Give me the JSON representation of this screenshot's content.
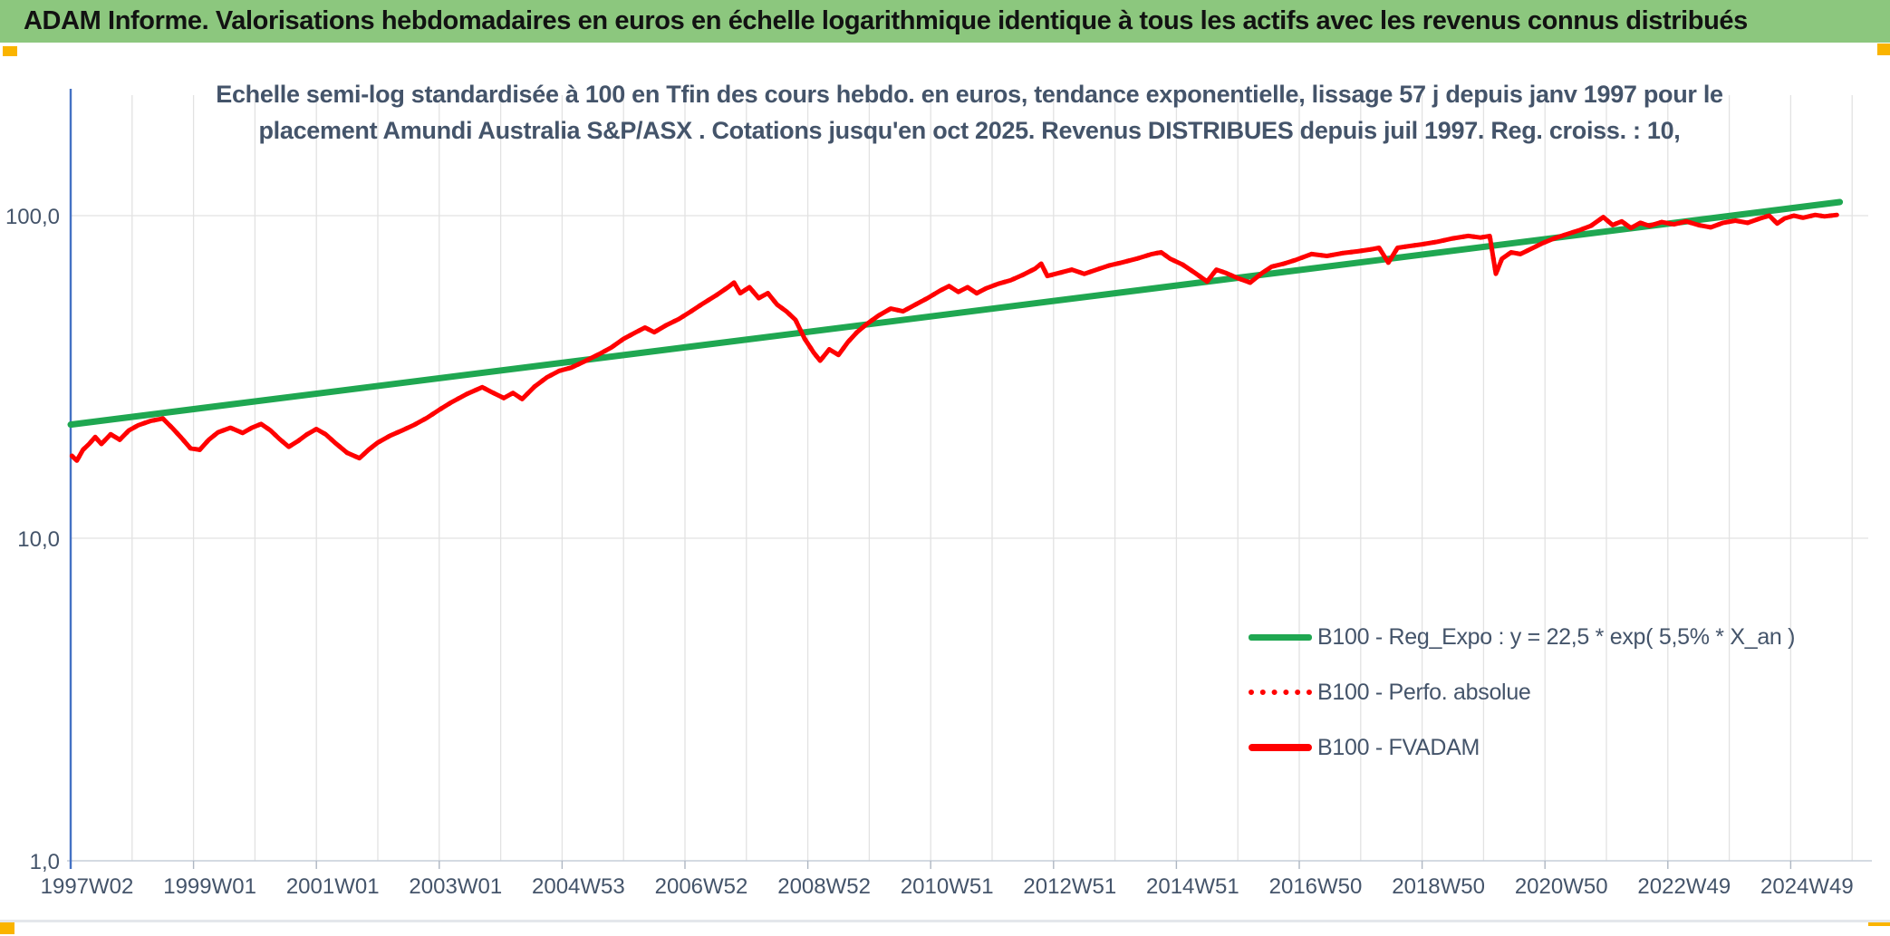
{
  "banner": {
    "text": "ADAM Informe. Valorisations hebdomadaires en euros en échelle logarithmique identique à tous les actifs avec les revenus connus distribués"
  },
  "colors": {
    "banner_bg": "#8CC77E",
    "accent_gold": "#FAB400",
    "title_text": "#44546A",
    "axis_text": "#44546A",
    "green_line": "#1FA751",
    "red_line": "#FF0000",
    "gridline": "#E2E2E2",
    "x_axis_line": "#C6CDD8",
    "tick_mark": "#AEB6C2",
    "y_axis_line": "#4472C4"
  },
  "chart_data": {
    "type": "line",
    "y_scale": "log",
    "title_line1": "Echelle semi-log standardisée à 100 en Tfin des cours hebdo. en euros, tendance exponentielle, lissage 57 j depuis janv 1997 pour le",
    "title_line2": "placement Amundi Australia S&P/ASX . Cotations jusqu'en oct 2025. Revenus DISTRIBUES depuis juil 1997. Reg. croiss. : 10,",
    "xlabel": "",
    "ylabel": "",
    "ylim": [
      1,
      230
    ],
    "x_range_years": [
      1997.0,
      2026.0
    ],
    "grid": "annual vertical gridlines, horizontal gridlines at each decade",
    "legend_position": "inside-bottom-right",
    "y_ticks": [
      {
        "value": 100,
        "label": "100,0"
      },
      {
        "value": 10,
        "label": "10,0"
      },
      {
        "value": 1,
        "label": "1,0"
      }
    ],
    "x_tick_labels": [
      "1997W02",
      "1999W01",
      "2001W01",
      "2003W01",
      "2004W53",
      "2006W52",
      "2008W52",
      "2010W51",
      "2012W51",
      "2014W51",
      "2016W50",
      "2018W50",
      "2020W50",
      "2022W49",
      "2024W49"
    ],
    "series": [
      {
        "name": "B100 - Reg_Expo : y = 22,5 * exp( 5,5% *  X_an )",
        "color": "#1FA751",
        "style": "solid",
        "points": [
          [
            1997.0,
            22.5
          ],
          [
            2025.8,
            110.2
          ]
        ]
      },
      {
        "name": "B100 - Perfo. absolue",
        "color": "#FF0000",
        "style": "dotted",
        "points_ref": "B100 - FVADAM"
      },
      {
        "name": "B100 - FVADAM",
        "color": "#FF0000",
        "style": "solid",
        "points": [
          [
            1997.02,
            18.0
          ],
          [
            1997.1,
            17.4
          ],
          [
            1997.2,
            18.8
          ],
          [
            1997.3,
            19.6
          ],
          [
            1997.4,
            20.6
          ],
          [
            1997.5,
            19.6
          ],
          [
            1997.65,
            21.0
          ],
          [
            1997.8,
            20.2
          ],
          [
            1997.95,
            21.6
          ],
          [
            1998.1,
            22.4
          ],
          [
            1998.3,
            23.1
          ],
          [
            1998.5,
            23.5
          ],
          [
            1998.65,
            22.0
          ],
          [
            1998.8,
            20.5
          ],
          [
            1998.95,
            19.0
          ],
          [
            1999.1,
            18.8
          ],
          [
            1999.25,
            20.2
          ],
          [
            1999.4,
            21.3
          ],
          [
            1999.6,
            22.0
          ],
          [
            1999.8,
            21.2
          ],
          [
            1999.95,
            22.0
          ],
          [
            2000.1,
            22.6
          ],
          [
            2000.25,
            21.6
          ],
          [
            2000.4,
            20.3
          ],
          [
            2000.55,
            19.2
          ],
          [
            2000.7,
            20.0
          ],
          [
            2000.85,
            21.0
          ],
          [
            2001.0,
            21.8
          ],
          [
            2001.15,
            21.0
          ],
          [
            2001.3,
            19.8
          ],
          [
            2001.5,
            18.4
          ],
          [
            2001.7,
            17.7
          ],
          [
            2001.85,
            18.8
          ],
          [
            2002.0,
            19.8
          ],
          [
            2002.2,
            20.8
          ],
          [
            2002.4,
            21.6
          ],
          [
            2002.6,
            22.5
          ],
          [
            2002.8,
            23.6
          ],
          [
            2003.0,
            25.0
          ],
          [
            2003.2,
            26.4
          ],
          [
            2003.45,
            28.0
          ],
          [
            2003.7,
            29.4
          ],
          [
            2003.85,
            28.4
          ],
          [
            2004.05,
            27.2
          ],
          [
            2004.2,
            28.2
          ],
          [
            2004.35,
            27.0
          ],
          [
            2004.55,
            29.5
          ],
          [
            2004.75,
            31.5
          ],
          [
            2004.95,
            33.0
          ],
          [
            2005.15,
            33.8
          ],
          [
            2005.35,
            35.2
          ],
          [
            2005.6,
            37.2
          ],
          [
            2005.8,
            39.0
          ],
          [
            2006.0,
            41.5
          ],
          [
            2006.2,
            43.5
          ],
          [
            2006.35,
            45.0
          ],
          [
            2006.5,
            43.5
          ],
          [
            2006.7,
            45.8
          ],
          [
            2006.9,
            47.8
          ],
          [
            2007.1,
            50.5
          ],
          [
            2007.3,
            53.5
          ],
          [
            2007.5,
            56.5
          ],
          [
            2007.7,
            60.0
          ],
          [
            2007.8,
            62.0
          ],
          [
            2007.9,
            57.5
          ],
          [
            2008.05,
            60.0
          ],
          [
            2008.2,
            55.5
          ],
          [
            2008.35,
            57.5
          ],
          [
            2008.5,
            53.0
          ],
          [
            2008.65,
            50.5
          ],
          [
            2008.8,
            47.5
          ],
          [
            2008.95,
            41.5
          ],
          [
            2009.1,
            37.5
          ],
          [
            2009.2,
            35.5
          ],
          [
            2009.35,
            38.5
          ],
          [
            2009.5,
            37.0
          ],
          [
            2009.65,
            40.5
          ],
          [
            2009.8,
            43.5
          ],
          [
            2009.95,
            46.0
          ],
          [
            2010.15,
            49.0
          ],
          [
            2010.35,
            51.5
          ],
          [
            2010.55,
            50.5
          ],
          [
            2010.75,
            53.0
          ],
          [
            2010.95,
            55.5
          ],
          [
            2011.15,
            58.5
          ],
          [
            2011.3,
            60.5
          ],
          [
            2011.45,
            58.0
          ],
          [
            2011.6,
            60.0
          ],
          [
            2011.75,
            57.5
          ],
          [
            2011.9,
            59.5
          ],
          [
            2012.1,
            61.5
          ],
          [
            2012.3,
            63.0
          ],
          [
            2012.5,
            65.5
          ],
          [
            2012.7,
            68.5
          ],
          [
            2012.8,
            71.0
          ],
          [
            2012.9,
            65.0
          ],
          [
            2013.1,
            66.5
          ],
          [
            2013.3,
            68.0
          ],
          [
            2013.5,
            66.0
          ],
          [
            2013.7,
            68.0
          ],
          [
            2013.9,
            70.0
          ],
          [
            2014.1,
            71.5
          ],
          [
            2014.35,
            73.5
          ],
          [
            2014.6,
            76.0
          ],
          [
            2014.75,
            77.0
          ],
          [
            2014.9,
            73.5
          ],
          [
            2015.1,
            70.5
          ],
          [
            2015.3,
            66.5
          ],
          [
            2015.5,
            62.5
          ],
          [
            2015.65,
            68.0
          ],
          [
            2015.8,
            66.5
          ],
          [
            2016.0,
            64.0
          ],
          [
            2016.2,
            62.0
          ],
          [
            2016.4,
            66.5
          ],
          [
            2016.55,
            69.5
          ],
          [
            2016.75,
            71.0
          ],
          [
            2016.95,
            73.0
          ],
          [
            2017.2,
            76.0
          ],
          [
            2017.45,
            75.0
          ],
          [
            2017.7,
            76.5
          ],
          [
            2017.95,
            77.5
          ],
          [
            2018.15,
            78.5
          ],
          [
            2018.3,
            79.5
          ],
          [
            2018.45,
            71.5
          ],
          [
            2018.6,
            79.5
          ],
          [
            2018.8,
            80.5
          ],
          [
            2019.0,
            81.5
          ],
          [
            2019.25,
            83.0
          ],
          [
            2019.5,
            85.0
          ],
          [
            2019.75,
            86.5
          ],
          [
            2019.95,
            85.5
          ],
          [
            2020.1,
            86.5
          ],
          [
            2020.2,
            66.0
          ],
          [
            2020.3,
            73.5
          ],
          [
            2020.45,
            77.0
          ],
          [
            2020.6,
            76.0
          ],
          [
            2020.75,
            78.5
          ],
          [
            2020.95,
            82.0
          ],
          [
            2021.15,
            85.0
          ],
          [
            2021.35,
            87.5
          ],
          [
            2021.55,
            90.0
          ],
          [
            2021.75,
            93.0
          ],
          [
            2021.95,
            99.0
          ],
          [
            2022.1,
            93.5
          ],
          [
            2022.25,
            96.0
          ],
          [
            2022.4,
            91.5
          ],
          [
            2022.55,
            95.0
          ],
          [
            2022.7,
            93.0
          ],
          [
            2022.9,
            95.5
          ],
          [
            2023.1,
            94.0
          ],
          [
            2023.3,
            96.0
          ],
          [
            2023.5,
            93.5
          ],
          [
            2023.7,
            92.0
          ],
          [
            2023.9,
            95.0
          ],
          [
            2024.1,
            96.5
          ],
          [
            2024.3,
            95.0
          ],
          [
            2024.5,
            98.0
          ],
          [
            2024.65,
            100.0
          ],
          [
            2024.78,
            94.5
          ],
          [
            2024.9,
            98.0
          ],
          [
            2025.05,
            100.0
          ],
          [
            2025.2,
            98.5
          ],
          [
            2025.4,
            100.5
          ],
          [
            2025.55,
            99.5
          ],
          [
            2025.75,
            100.5
          ]
        ]
      }
    ]
  }
}
